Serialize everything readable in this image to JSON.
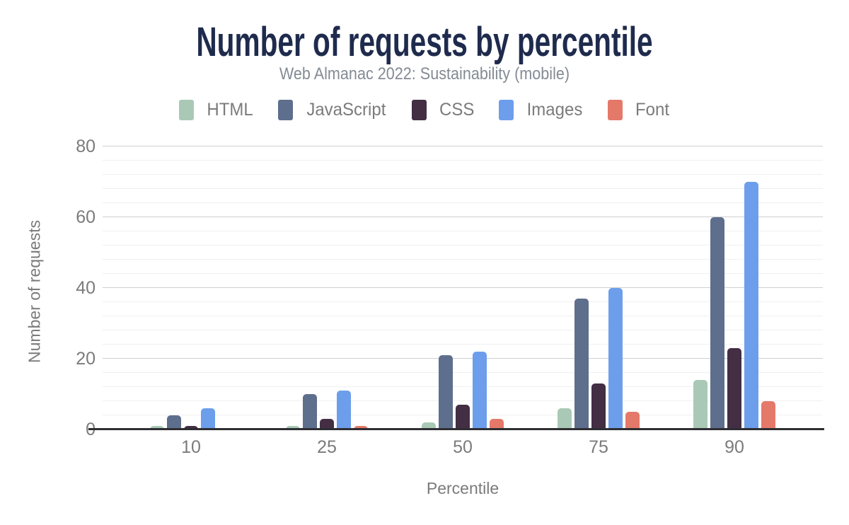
{
  "chart_data": {
    "type": "bar",
    "title": "Number of requests by percentile",
    "subtitle": "Web Almanac 2022: Sustainability (mobile)",
    "xlabel": "Percentile",
    "ylabel": "Number of requests",
    "categories": [
      "10",
      "25",
      "50",
      "75",
      "90"
    ],
    "series": [
      {
        "name": "HTML",
        "color": "#a9c9b6",
        "values": [
          1,
          1,
          2,
          6,
          14
        ]
      },
      {
        "name": "JavaScript",
        "color": "#5e6e8d",
        "values": [
          4,
          10,
          21,
          37,
          60
        ]
      },
      {
        "name": "CSS",
        "color": "#432e44",
        "values": [
          1,
          3,
          7,
          13,
          23
        ]
      },
      {
        "name": "Images",
        "color": "#6d9eeb",
        "values": [
          6,
          11,
          22,
          40,
          70
        ]
      },
      {
        "name": "Font",
        "color": "#e4796a",
        "values": [
          0,
          1,
          3,
          5,
          8
        ]
      }
    ],
    "ylim": [
      0,
      80
    ],
    "yticks": [
      0,
      20,
      40,
      60,
      80
    ],
    "minor_gridline_step": 4,
    "grid": "horizontal",
    "legend_position": "top",
    "colors": {
      "title": "#1f2b4d",
      "subtitle": "#848b94",
      "axis_text": "#7b7b7b",
      "axis_line": "#2e2e33",
      "major_gridline": "#cfcfcf",
      "minor_gridline": "#f0f0f0",
      "background": "#ffffff"
    }
  }
}
